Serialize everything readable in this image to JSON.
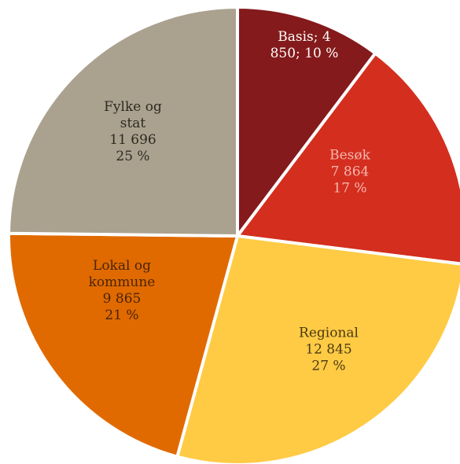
{
  "chart_data": {
    "type": "pie",
    "title": "",
    "slices": [
      {
        "label_lines": [
          "Basis; 4",
          "850; 10 %"
        ],
        "value": 4850,
        "percent": 10,
        "color": "#841A1B",
        "text_color": "#FFFFFF"
      },
      {
        "label_lines": [
          "Besøk",
          "7 864",
          "17 %"
        ],
        "value": 7864,
        "percent": 17,
        "color": "#D42E1E",
        "text_color": "#F5B7AF"
      },
      {
        "label_lines": [
          "Regional",
          "12 845",
          "27 %"
        ],
        "value": 12845,
        "percent": 27,
        "color": "#FFCB45",
        "text_color": "#4A3A12"
      },
      {
        "label_lines": [
          "Lokal og",
          "kommune",
          "9 865",
          "21 %"
        ],
        "value": 9865,
        "percent": 21,
        "color": "#E06A00",
        "text_color": "#4A2408"
      },
      {
        "label_lines": [
          "Fylke og",
          "stat",
          "11 696",
          "25 %"
        ],
        "value": 11696,
        "percent": 25,
        "color": "#AAA18F",
        "text_color": "#2E2A22"
      }
    ],
    "legend": "none",
    "start_angle": "12 o'clock",
    "direction": "clockwise"
  }
}
